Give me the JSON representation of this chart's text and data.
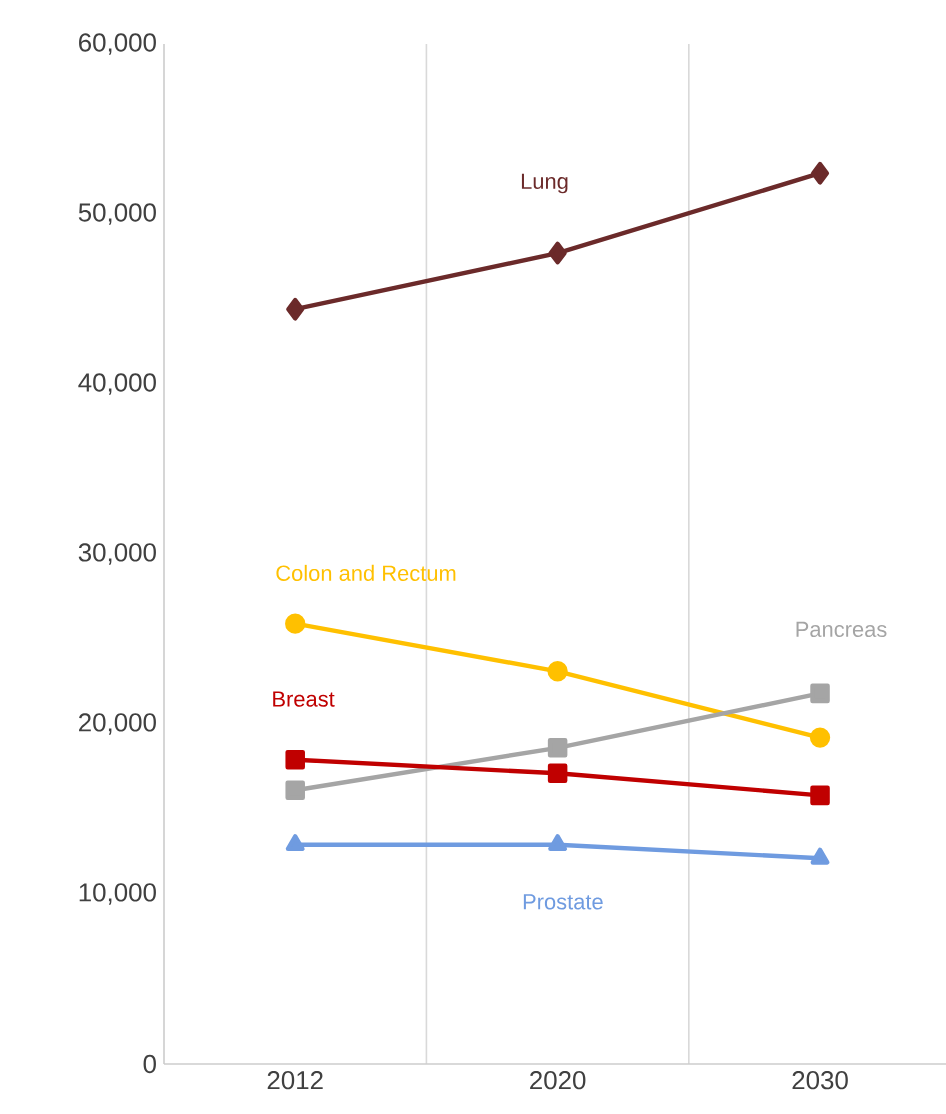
{
  "chart_data": {
    "type": "line",
    "categories": [
      "2012",
      "2020",
      "2030"
    ],
    "ylim": [
      0,
      60000
    ],
    "yticks": [
      {
        "value": 0,
        "label": "0"
      },
      {
        "value": 10000,
        "label": "10,000"
      },
      {
        "value": 20000,
        "label": "20,000"
      },
      {
        "value": 30000,
        "label": "30,000"
      },
      {
        "value": 40000,
        "label": "40,000"
      },
      {
        "value": 50000,
        "label": "50,000"
      },
      {
        "value": 60000,
        "label": "60,000"
      }
    ],
    "grid": "x",
    "series": [
      {
        "name": "Lung",
        "color": "#6b2a2a",
        "marker": "diamond",
        "values": [
          44400,
          47700,
          52400
        ]
      },
      {
        "name": "Colon and Rectum",
        "color": "#ffc000",
        "marker": "circle",
        "values": [
          25900,
          23100,
          19200
        ]
      },
      {
        "name": "Pancreas",
        "color": "#a5a5a5",
        "marker": "square",
        "values": [
          16100,
          18600,
          21800
        ]
      },
      {
        "name": "Breast",
        "color": "#c00000",
        "marker": "square",
        "values": [
          17900,
          17100,
          15800
        ]
      },
      {
        "name": "Prostate",
        "color": "#6f9be0",
        "marker": "triangle",
        "values": [
          12900,
          12900,
          12100
        ]
      }
    ]
  }
}
